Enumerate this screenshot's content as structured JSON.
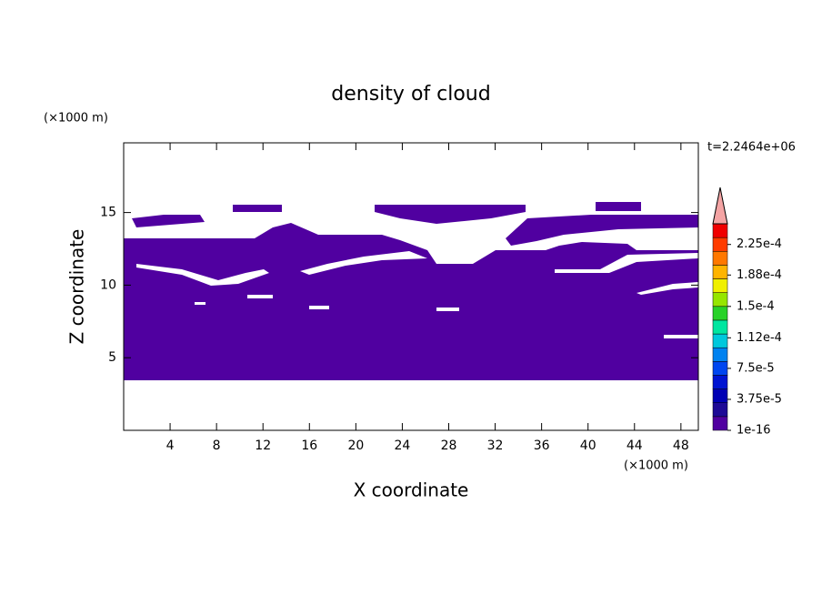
{
  "chart_data": {
    "type": "contour",
    "title": "density of cloud",
    "x_label": "X coordinate",
    "y_label": "Z coordinate",
    "x_unit": "(×1000 m)",
    "y_unit": "(×1000 m)",
    "time_label": "t=2.2464e+06",
    "xlim": [
      0,
      49.5
    ],
    "ylim": [
      0,
      19.8
    ],
    "xticks": [
      4,
      8,
      12,
      16,
      20,
      24,
      28,
      32,
      36,
      40,
      44,
      48
    ],
    "yticks": [
      5,
      10,
      15
    ],
    "colorbar": {
      "clim": [
        0,
        0.00025
      ],
      "ticks": [
        1e-16,
        {
          "value": 3.75e-05,
          "label": "3.75e-5"
        },
        {
          "value": 7.5e-05,
          "label": "7.5e-5"
        },
        {
          "value": 0.000112,
          "label": "1.12e-4"
        },
        {
          "value": 0.00015,
          "label": "1.5e-4"
        },
        {
          "value": 0.000188,
          "label": "1.88e-4"
        },
        {
          "value": 0.000225,
          "label": "2.25e-4"
        }
      ],
      "colors": [
        "#5000a0",
        "#1e0a96",
        "#0000b4",
        "#0014d2",
        "#0046f0",
        "#0082f0",
        "#00c8dc",
        "#00e6a0",
        "#28d228",
        "#96e600",
        "#f0f000",
        "#ffb400",
        "#ff7800",
        "#ff3c00",
        "#f00000"
      ],
      "extend_color": "#f4a4a4"
    }
  }
}
